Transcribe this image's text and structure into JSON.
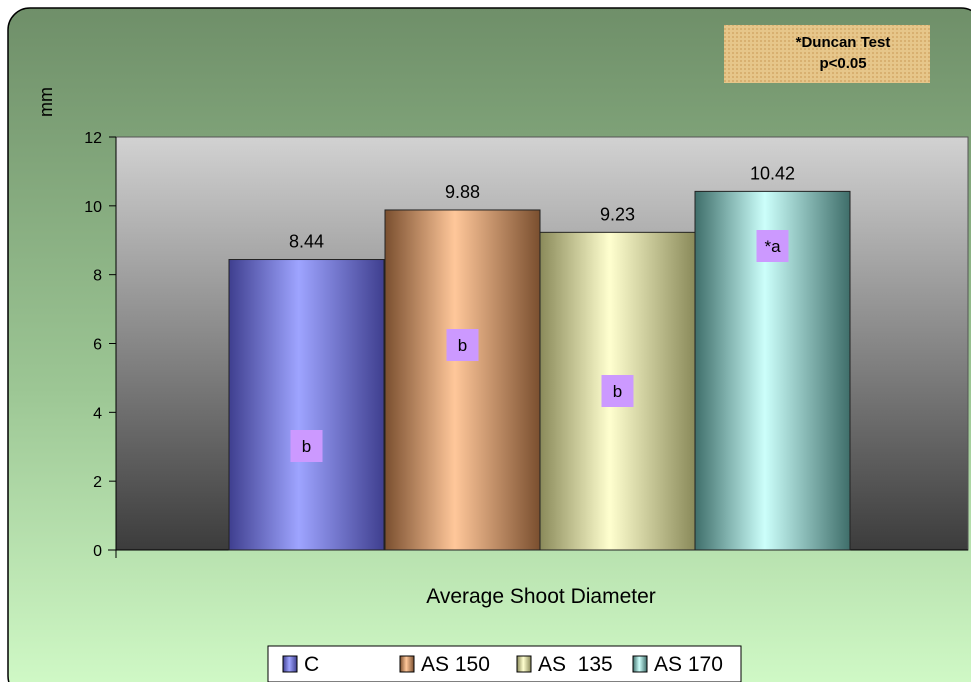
{
  "chart_data": {
    "type": "bar",
    "title": "",
    "xlabel": "Average Shoot Diameter",
    "ylabel": "mm",
    "ylim": [
      0,
      12
    ],
    "yticks": [
      0,
      2,
      4,
      6,
      8,
      10,
      12
    ],
    "grid": false,
    "legend_position": "bottom",
    "note": {
      "line1": "*Duncan Test",
      "line2": "p<0.05"
    },
    "series": [
      {
        "name": "C",
        "value": 8.44,
        "value_label": "8.44",
        "group_label": "b",
        "color": "#8f95ef"
      },
      {
        "name": "AS 150",
        "value": 9.88,
        "value_label": "9.88",
        "group_label": "b",
        "color": "#e8a97c"
      },
      {
        "name": "AS  135",
        "value": 9.23,
        "value_label": "9.23",
        "group_label": "b",
        "color": "#f2f2bd"
      },
      {
        "name": "AS 170",
        "value": 10.42,
        "value_label": "10.42",
        "group_label": "*a",
        "color": "#b9f2ee"
      }
    ]
  },
  "colors": {
    "frame_top": "#6f8f69",
    "frame_bottom": "#c9f7bf",
    "plot_top": "#cfcfcf",
    "plot_bottom": "#3f3f3f",
    "note_box": "#e5c487",
    "group_label_box": "#cc99ff"
  }
}
